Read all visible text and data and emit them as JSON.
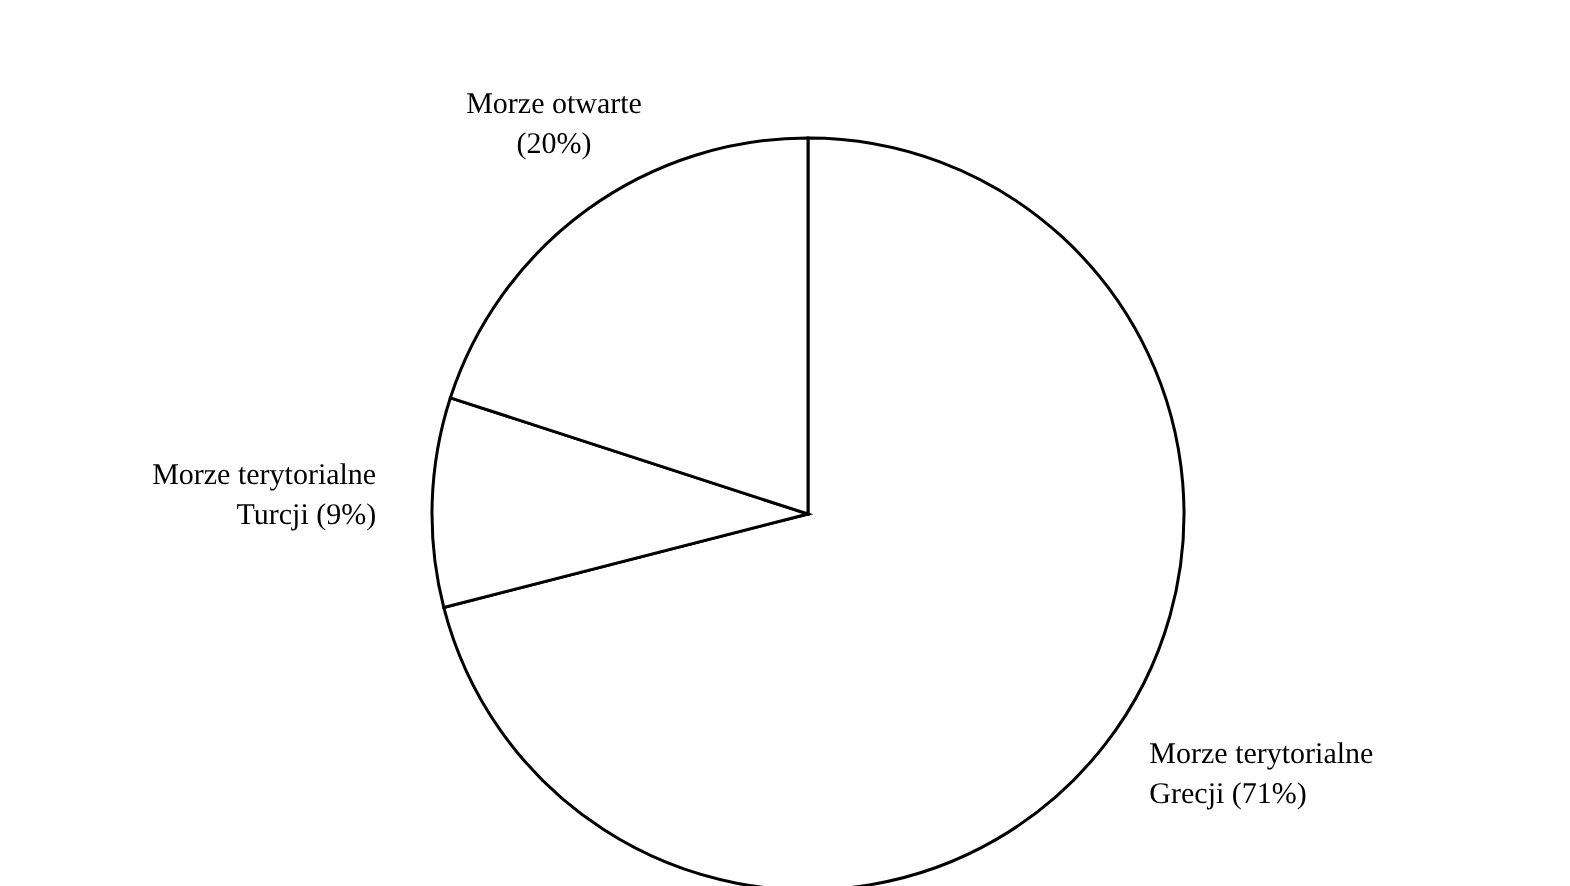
{
  "chart_data": {
    "type": "pie",
    "categories": [
      "Morze terytorialne Grecji",
      "Morze terytorialne Turcji",
      "Morze otwarte"
    ],
    "values": [
      71,
      9,
      20
    ],
    "value_labels": [
      "(71%)",
      "(9%)",
      "(20%)"
    ],
    "colors": [
      "#ffffff",
      "#ffffff",
      "#ffffff"
    ]
  }
}
